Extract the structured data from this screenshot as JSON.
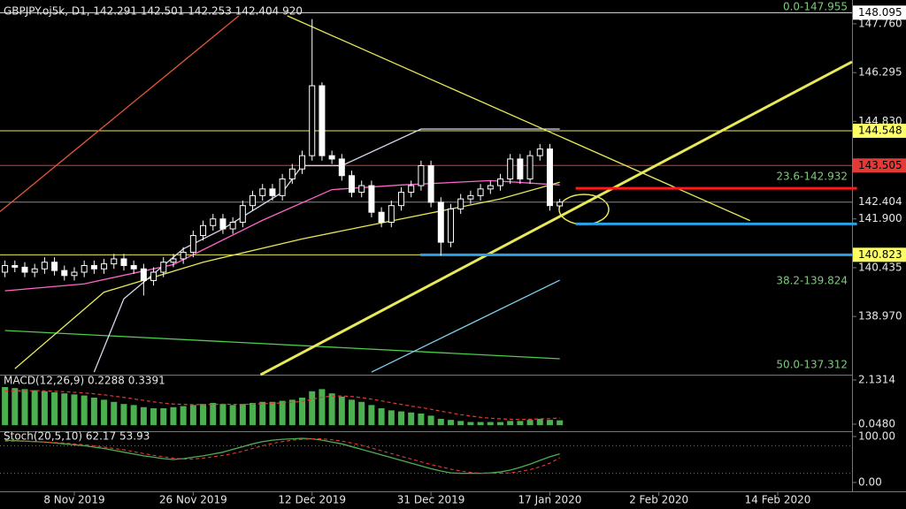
{
  "chart_data": {
    "type": "candlestick",
    "title": "GBPJPY.oj5k, D1, 142.291 142.501 142.253 142.404 920",
    "open": [
      140.3,
      140.5,
      140.45,
      140.3,
      140.4,
      140.6,
      140.35,
      140.2,
      140.3,
      140.5,
      140.4,
      140.55,
      140.7,
      140.5,
      140.4,
      140.05,
      140.3,
      140.6,
      140.7,
      140.9,
      141.4,
      141.7,
      141.9,
      141.6,
      141.8,
      142.3,
      142.6,
      142.8,
      142.6,
      143.1,
      143.4,
      143.8,
      145.9,
      143.8,
      143.7,
      143.2,
      142.7,
      142.9,
      142.1,
      141.8,
      142.3,
      142.7,
      142.9,
      143.5,
      142.4,
      141.2,
      142.2,
      142.5,
      142.6,
      142.8,
      142.9,
      143.1,
      143.7,
      143.1,
      143.8,
      144.0,
      142.291
    ],
    "high": [
      140.65,
      140.65,
      140.6,
      140.55,
      140.75,
      140.75,
      140.5,
      140.45,
      140.65,
      140.65,
      140.7,
      140.85,
      140.85,
      140.65,
      140.55,
      140.45,
      140.75,
      140.85,
      141.05,
      141.55,
      141.85,
      142.05,
      142.05,
      141.95,
      142.45,
      142.75,
      142.95,
      142.95,
      143.25,
      143.55,
      143.95,
      147.9,
      146.0,
      143.95,
      143.85,
      143.35,
      143.05,
      143.05,
      142.25,
      142.45,
      142.85,
      143.05,
      143.65,
      143.65,
      142.55,
      142.35,
      142.65,
      142.75,
      142.95,
      143.05,
      143.25,
      143.85,
      143.85,
      143.95,
      144.15,
      144.15,
      142.501
    ],
    "low": [
      140.15,
      140.3,
      140.15,
      140.15,
      140.25,
      140.2,
      140.05,
      140.05,
      140.15,
      140.25,
      140.25,
      140.4,
      140.35,
      140.25,
      139.6,
      139.9,
      140.15,
      140.45,
      140.55,
      140.75,
      141.25,
      141.55,
      141.45,
      141.45,
      141.65,
      142.15,
      142.45,
      142.45,
      142.45,
      142.95,
      143.25,
      143.65,
      143.65,
      143.55,
      143.05,
      142.55,
      142.55,
      141.95,
      141.65,
      141.65,
      142.15,
      142.55,
      142.75,
      142.25,
      140.8,
      141.05,
      142.05,
      142.35,
      142.45,
      142.65,
      142.75,
      142.95,
      142.95,
      142.95,
      143.65,
      142.15,
      142.253
    ],
    "close": [
      140.5,
      140.45,
      140.3,
      140.4,
      140.6,
      140.35,
      140.2,
      140.3,
      140.5,
      140.4,
      140.55,
      140.7,
      140.5,
      140.4,
      140.05,
      140.3,
      140.6,
      140.7,
      140.9,
      141.4,
      141.7,
      141.9,
      141.6,
      141.8,
      142.3,
      142.6,
      142.8,
      142.6,
      143.1,
      143.4,
      143.8,
      145.9,
      143.8,
      143.7,
      143.2,
      142.7,
      142.9,
      142.1,
      141.8,
      142.3,
      142.7,
      142.9,
      143.5,
      142.4,
      141.2,
      142.2,
      142.5,
      142.6,
      142.8,
      142.9,
      143.1,
      143.7,
      143.1,
      143.8,
      144.0,
      142.3,
      142.404
    ],
    "xlim": [
      -0.5,
      85.5
    ],
    "xticks": [
      {
        "value": 7,
        "label": "8 Nov 2019"
      },
      {
        "value": 19,
        "label": "26 Nov 2019"
      },
      {
        "value": 31,
        "label": "12 Dec 2019"
      },
      {
        "value": 43,
        "label": "31 Dec 2019"
      },
      {
        "value": 55,
        "label": "17 Jan 2020"
      },
      {
        "value": 66,
        "label": "2 Feb 2020"
      },
      {
        "value": 78,
        "label": "14 Feb 2020"
      }
    ],
    "ylim": [
      137.222,
      148.475
    ],
    "yticks": [
      {
        "value": 147.76,
        "label": "147.760"
      },
      146.295,
      {
        "value": 144.83,
        "label": "144.830"
      },
      {
        "value": 141.9,
        "label": "141.900"
      },
      140.435,
      {
        "value": 138.97,
        "label": "138.970"
      }
    ],
    "price_markers": [
      {
        "value": 148.095,
        "color": "#ffffff",
        "line_color": "#dddddd"
      },
      {
        "value": 144.548,
        "color": "#ffff66",
        "line_color": "#e8e85a"
      },
      {
        "value": 143.505,
        "color": "#e53935",
        "line_color": "#e53935"
      },
      {
        "value": 142.404,
        "line_color": "#8a8a8a"
      },
      {
        "value": 140.823,
        "color": "#ffff66",
        "line_color": "#e8e85a"
      }
    ],
    "fib_labels": [
      "0.0-147.955",
      "23.6-142.932",
      "38.2-139.824",
      "50.0-137.312"
    ],
    "overlays": [
      {
        "color": "#4ccd4c",
        "x": [
          0,
          56
        ],
        "values": [
          138.55,
          137.7
        ]
      },
      {
        "color": "#7fd0f0",
        "x": [
          37,
          56
        ],
        "values": [
          137.3,
          140.06
        ]
      },
      {
        "color": "#ff66cc",
        "x": [
          0,
          8,
          17,
          26,
          33,
          40,
          49,
          56
        ],
        "values": [
          139.74,
          139.95,
          140.53,
          141.86,
          142.78,
          142.92,
          143.05,
          142.92
        ]
      },
      {
        "color": "#d8d8f0",
        "x": [
          9,
          12,
          18,
          22,
          28,
          30,
          34,
          42,
          56
        ],
        "values": [
          137.3,
          139.5,
          141.0,
          141.6,
          142.7,
          143.5,
          143.5,
          144.6,
          144.6
        ]
      },
      {
        "color": "#e8e85a",
        "x": [
          1,
          10,
          20,
          30,
          40,
          50,
          56
        ],
        "values": [
          137.4,
          139.7,
          140.6,
          141.3,
          141.9,
          142.5,
          143.0
        ]
      },
      {
        "color": "#e8e85a",
        "x": [
          28.5,
          75.2
        ],
        "values": [
          148.0,
          141.85
        ]
      },
      {
        "color": "#e8e85a",
        "x": [
          25.8,
          85.5
        ],
        "values": [
          137.22,
          146.62
        ]
      },
      {
        "color": "#e0553a",
        "x": [
          -0.5,
          23.6
        ],
        "values": [
          142.12,
          148.0
        ]
      },
      {
        "color": "#ff1a1a",
        "x": [
          57.6,
          86
        ],
        "values": [
          142.82,
          142.82
        ]
      },
      {
        "color": "#29a3e6",
        "x": [
          57.6,
          86
        ],
        "values": [
          141.75,
          141.75
        ]
      },
      {
        "color": "#29a3e6",
        "x": [
          41.9,
          86
        ],
        "values": [
          140.823,
          140.823
        ]
      }
    ],
    "macd": {
      "label": "MACD(12,26,9) 0.2288 0.3391",
      "color": "#4caf50",
      "signal_color": "#e53935",
      "values": [
        1.8,
        1.75,
        1.7,
        1.65,
        1.6,
        1.55,
        1.5,
        1.45,
        1.4,
        1.3,
        1.2,
        1.1,
        1.0,
        0.95,
        0.85,
        0.8,
        0.8,
        0.85,
        0.9,
        0.95,
        1.0,
        1.05,
        1.0,
        0.95,
        1.0,
        1.05,
        1.1,
        1.1,
        1.15,
        1.2,
        1.3,
        1.6,
        1.7,
        1.5,
        1.35,
        1.2,
        1.1,
        0.95,
        0.8,
        0.7,
        0.65,
        0.6,
        0.55,
        0.45,
        0.3,
        0.25,
        0.2,
        0.15,
        0.15,
        0.15,
        0.15,
        0.2,
        0.2,
        0.25,
        0.3,
        0.25,
        0.2288
      ],
      "signal": [
        1.6,
        1.62,
        1.63,
        1.63,
        1.62,
        1.6,
        1.58,
        1.55,
        1.52,
        1.48,
        1.43,
        1.37,
        1.31,
        1.24,
        1.17,
        1.1,
        1.04,
        1.0,
        0.98,
        0.97,
        0.97,
        0.98,
        0.99,
        0.98,
        0.98,
        0.99,
        1.01,
        1.03,
        1.05,
        1.08,
        1.12,
        1.22,
        1.32,
        1.37,
        1.38,
        1.35,
        1.3,
        1.23,
        1.15,
        1.06,
        0.98,
        0.9,
        0.83,
        0.75,
        0.66,
        0.58,
        0.5,
        0.43,
        0.37,
        0.33,
        0.3,
        0.28,
        0.27,
        0.28,
        0.3,
        0.31,
        0.3391
      ],
      "ylim": [
        -0.285,
        2.34
      ],
      "yticks": [
        2.1314,
        {
          "value": 0.048,
          "label": "0.0480"
        }
      ]
    },
    "stoch": {
      "label": "Stoch(20,5,10) 62.17 53.93",
      "color": "#4caf50",
      "signal_color": "#e53935",
      "main": [
        92,
        91,
        90,
        89,
        88,
        86,
        84,
        82,
        80,
        77,
        74,
        70,
        66,
        62,
        58,
        55,
        52,
        50,
        52,
        55,
        58,
        62,
        66,
        72,
        78,
        84,
        89,
        92,
        94,
        95,
        96,
        95,
        92,
        88,
        84,
        78,
        72,
        66,
        60,
        54,
        48,
        42,
        36,
        30,
        25,
        21,
        20,
        20,
        20,
        21,
        23,
        27,
        33,
        40,
        48,
        56,
        62.17
      ],
      "signal": [
        90,
        90,
        90,
        89,
        88,
        87,
        86,
        84,
        82,
        80,
        77,
        74,
        71,
        67,
        63,
        59,
        56,
        53,
        51,
        51,
        53,
        56,
        59,
        63,
        68,
        74,
        80,
        85,
        89,
        92,
        94,
        95,
        95,
        93,
        90,
        86,
        81,
        75,
        69,
        63,
        57,
        51,
        45,
        39,
        34,
        29,
        25,
        22,
        20,
        20,
        20,
        21,
        24,
        28,
        34,
        42,
        53.93
      ],
      "ylim": [
        -19.2,
        109.6
      ],
      "yticks": [
        {
          "value": 100,
          "label": "100.00"
        },
        {
          "value": 0,
          "label": "0.00"
        }
      ],
      "levels": [
        80,
        20
      ]
    }
  }
}
